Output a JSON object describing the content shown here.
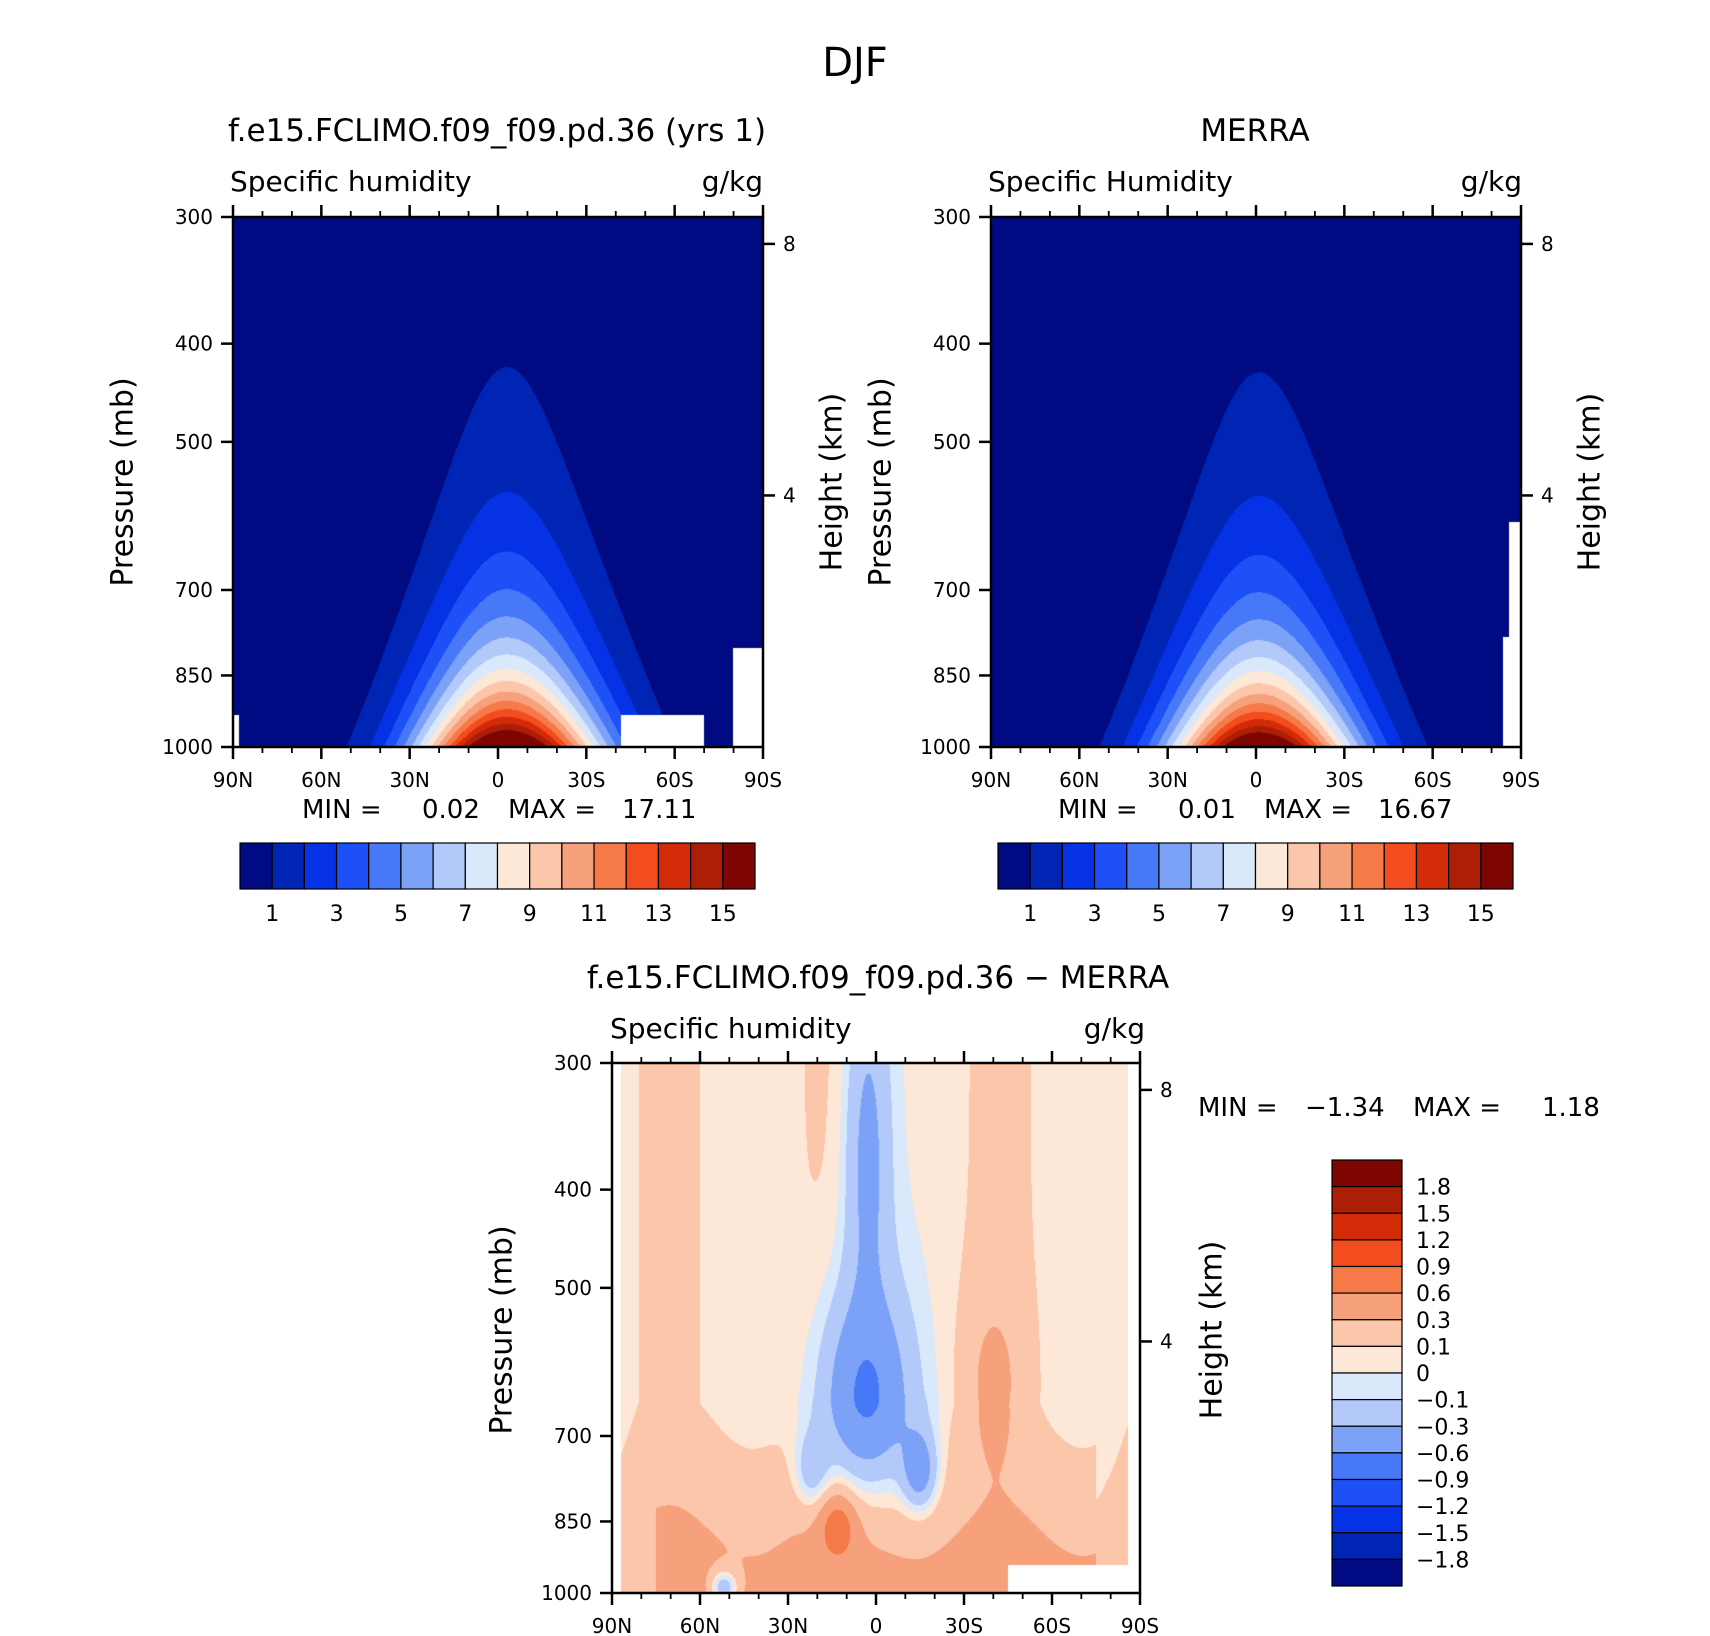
{
  "figure": {
    "title": "DJF"
  },
  "colors": {
    "abs": [
      "#000a82",
      "#0025b4",
      "#0532e4",
      "#1e50f7",
      "#4678f8",
      "#7ca2f8",
      "#b2c9f9",
      "#d9e8fa",
      "#fde7d6",
      "#fbc6aa",
      "#f7a07c",
      "#f67a48",
      "#f24c1f",
      "#d32a08",
      "#ad1e06",
      "#7d0603"
    ],
    "diff": [
      "#000a82",
      "#0025b4",
      "#0532e4",
      "#1e50f7",
      "#4678f8",
      "#7ca2f8",
      "#b2c9f9",
      "#d9e8fa",
      "#fde7d6",
      "#fbc6aa",
      "#f7a07c",
      "#f67a48",
      "#f24c1f",
      "#d32a08",
      "#ad1e06",
      "#7d0603"
    ]
  },
  "chart_data": [
    {
      "type": "heatmap",
      "panel": "model",
      "title": "f.e15.FCLIMO.f09_f09.pd.36 (yrs 1)",
      "left_label": "Specific humidity",
      "units": "g/kg",
      "ylabel": "Pressure (mb)",
      "ylabel_right": "Height (km)",
      "x_ticks": [
        "90N",
        "60N",
        "30N",
        "0",
        "30S",
        "60S",
        "90S"
      ],
      "y_ticks": [
        "300",
        "400",
        "500",
        "700",
        "850",
        "1000"
      ],
      "height_ticks": [
        "8",
        "4"
      ],
      "stats": {
        "min_label": "MIN =",
        "min": "0.02",
        "max_label": "MAX =",
        "max": "17.11"
      },
      "colorbar_labels": [
        "1",
        "3",
        "5",
        "7",
        "9",
        "11",
        "13",
        "15"
      ],
      "ylim": [
        1000,
        300
      ],
      "xlim": [
        90,
        -90
      ],
      "peak": 17.11,
      "center_lat": -3
    },
    {
      "type": "heatmap",
      "panel": "merra",
      "title": "MERRA",
      "left_label": "Specific Humidity",
      "units": "g/kg",
      "ylabel": "Pressure (mb)",
      "ylabel_right": "Height (km)",
      "x_ticks": [
        "90N",
        "60N",
        "30N",
        "0",
        "30S",
        "60S",
        "90S"
      ],
      "y_ticks": [
        "300",
        "400",
        "500",
        "700",
        "850",
        "1000"
      ],
      "height_ticks": [
        "8",
        "4"
      ],
      "stats": {
        "min_label": "MIN =",
        "min": "0.01",
        "max_label": "MAX =",
        "max": "16.67"
      },
      "colorbar_labels": [
        "1",
        "3",
        "5",
        "7",
        "9",
        "11",
        "13",
        "15"
      ],
      "ylim": [
        1000,
        300
      ],
      "xlim": [
        90,
        -90
      ],
      "peak": 16.67,
      "center_lat": -1
    },
    {
      "type": "heatmap",
      "panel": "difference",
      "title": "f.e15.FCLIMO.f09_f09.pd.36 − MERRA",
      "left_label": "Specific humidity",
      "units": "g/kg",
      "ylabel": "Pressure (mb)",
      "ylabel_right": "Height (km)",
      "x_ticks": [
        "90N",
        "60N",
        "30N",
        "0",
        "30S",
        "60S",
        "90S"
      ],
      "y_ticks": [
        "300",
        "400",
        "500",
        "700",
        "850",
        "1000"
      ],
      "height_ticks": [
        "8",
        "4"
      ],
      "stats": {
        "min_label": "MIN =",
        "min": "−1.34",
        "max_label": "MAX =",
        "max": "1.18"
      },
      "colorbar_labels": [
        "1.8",
        "1.5",
        "1.2",
        "0.9",
        "0.6",
        "0.3",
        "0.1",
        "0",
        "−0.1",
        "−0.3",
        "−0.6",
        "−0.9",
        "−1.2",
        "−1.5",
        "−1.8"
      ],
      "ylim": [
        1000,
        300
      ],
      "xlim": [
        90,
        -90
      ]
    }
  ]
}
